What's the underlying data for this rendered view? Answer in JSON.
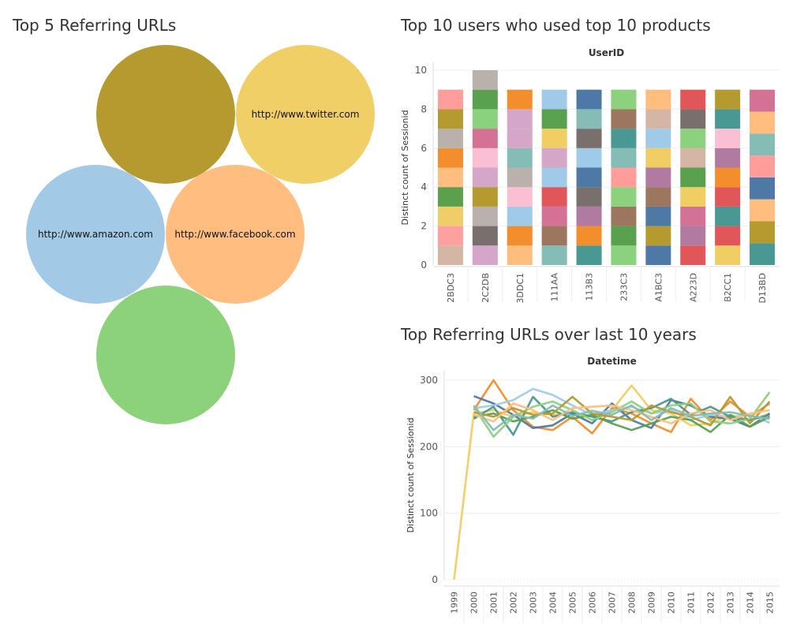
{
  "titles": {
    "bubbles": "Top 5 Referring URLs",
    "bar": "Top 10 users who used top 10 products",
    "line": "Top Referring URLs over last 10 years"
  },
  "chart_data": [
    {
      "type": "bubble",
      "title": "Top 5 Referring URLs",
      "bubbles": [
        {
          "label": "",
          "color": "#b59a30"
        },
        {
          "label": "http://www.twitter.com",
          "color": "#f0cf66"
        },
        {
          "label": "http://www.amazon.com",
          "color": "#a2cae6"
        },
        {
          "label": "http://www.facebook.com",
          "color": "#ffbd7f"
        },
        {
          "label": "",
          "color": "#8cd27a"
        }
      ]
    },
    {
      "type": "bar",
      "stacked": true,
      "title": "Top 10 users who used top 10 products",
      "column_header": "UserID",
      "ylabel": "Distinct count of Sessionid",
      "ylim": [
        0,
        10
      ],
      "yticks": [
        0,
        2,
        4,
        6,
        8,
        10
      ],
      "categories": [
        "2BDC3",
        "2C2DB",
        "3DDC1",
        "111AA",
        "113B3",
        "233C3",
        "A1BC3",
        "A223D",
        "B2CC1",
        "D13BD"
      ],
      "values": [
        9,
        10,
        9,
        9,
        9,
        9,
        9,
        9,
        9,
        9
      ],
      "segment_colors": [
        [
          "#d5b5a4",
          "#ffa0a0",
          "#efce68",
          "#5ba04c",
          "#ffbd7f",
          "#f28e2b",
          "#bab0ac",
          "#b59a30",
          "#ff9d9a"
        ],
        [
          "#d5a6c9",
          "#79706e",
          "#bab0ac",
          "#b59a30",
          "#d4a6c8",
          "#fabfd2",
          "#d37295",
          "#8cd17d",
          "#59a14f",
          "#bab0ac"
        ],
        [
          "#ffbe7d",
          "#f28e2b",
          "#a0cbe8",
          "#fabfd2",
          "#bab0ac",
          "#86bcb6",
          "#d4a6c8",
          "#d4a6c8",
          "#f28e2b"
        ],
        [
          "#86bcb6",
          "#9d7660",
          "#d37295",
          "#e15759",
          "#a0cbe8",
          "#d4a6c8",
          "#f1ce63",
          "#59a14f",
          "#a0cbe8"
        ],
        [
          "#499894",
          "#f28e2b",
          "#b07aa1",
          "#79706e",
          "#4e79a7",
          "#a0cbe8",
          "#79706e",
          "#86bcb6",
          "#4e79a7"
        ],
        [
          "#8cd17d",
          "#59a14f",
          "#9d7660",
          "#8cd17d",
          "#ff9d9a",
          "#86bcb6",
          "#499894",
          "#9d7660",
          "#8cd17d"
        ],
        [
          "#4e79a7",
          "#b59a30",
          "#4e79a7",
          "#9d7660",
          "#b07aa1",
          "#f1ce63",
          "#a0cbe8",
          "#d5b5a4",
          "#ffbe7d"
        ],
        [
          "#e15759",
          "#b07aa1",
          "#d37295",
          "#f1ce63",
          "#59a14f",
          "#d5b5a4",
          "#8cd17d",
          "#79706e",
          "#e15759"
        ],
        [
          "#f1ce63",
          "#e15759",
          "#499894",
          "#e15759",
          "#f28e2b",
          "#b07aa1",
          "#fabfd2",
          "#499894",
          "#b59a30"
        ],
        [
          "#499894",
          "#b59a30",
          "#ffbe7d",
          "#4e79a7",
          "#ff9d9a",
          "#86bcb6",
          "#ffbe7d",
          "#d37295"
        ]
      ]
    },
    {
      "type": "line",
      "title": "Top Referring URLs over last 10 years",
      "column_header": "Datetime",
      "ylabel": "Distinct count of Sessionid",
      "ylim": [
        0,
        300
      ],
      "yticks": [
        0,
        100,
        200,
        300
      ],
      "x": [
        "1999",
        "2000",
        "2001",
        "2002",
        "2003",
        "2004",
        "2005",
        "2006",
        "2007",
        "2008",
        "2009",
        "2010",
        "2011",
        "2012",
        "2013",
        "2014",
        "2015"
      ],
      "series": [
        {
          "color": "#f1ce63",
          "values": [
            0,
            250,
            255,
            245,
            252,
            248,
            250,
            246,
            255,
            292,
            255,
            250,
            232,
            235,
            248,
            240,
            250
          ]
        },
        {
          "color": "#f28e2b",
          "values": [
            null,
            255,
            300,
            255,
            230,
            225,
            245,
            220,
            258,
            250,
            235,
            222,
            272,
            240,
            268,
            245,
            265
          ]
        },
        {
          "color": "#4e79a7",
          "values": [
            null,
            276,
            265,
            248,
            228,
            232,
            250,
            235,
            265,
            240,
            228,
            270,
            262,
            245,
            242,
            230,
            250
          ]
        },
        {
          "color": "#a0cbe8",
          "values": [
            null,
            258,
            262,
            270,
            287,
            278,
            262,
            248,
            255,
            260,
            250,
            255,
            240,
            248,
            245,
            248,
            236
          ]
        },
        {
          "color": "#499894",
          "values": [
            null,
            242,
            260,
            218,
            275,
            245,
            252,
            245,
            238,
            252,
            258,
            272,
            248,
            260,
            245,
            240,
            248
          ]
        },
        {
          "color": "#59a14f",
          "values": [
            null,
            245,
            250,
            238,
            245,
            255,
            242,
            248,
            235,
            225,
            235,
            245,
            240,
            222,
            248,
            230,
            245
          ]
        },
        {
          "color": "#8cd17d",
          "values": [
            null,
            260,
            215,
            245,
            260,
            268,
            255,
            240,
            252,
            268,
            250,
            262,
            265,
            238,
            235,
            242,
            282
          ]
        },
        {
          "color": "#b59a30",
          "values": [
            null,
            252,
            245,
            258,
            248,
            250,
            275,
            250,
            245,
            240,
            262,
            252,
            245,
            232,
            275,
            235,
            268
          ]
        },
        {
          "color": "#ffbe7d",
          "values": [
            null,
            248,
            238,
            265,
            255,
            240,
            258,
            260,
            262,
            255,
            245,
            235,
            250,
            255,
            240,
            250,
            255
          ]
        },
        {
          "color": "#86bcb6",
          "values": [
            null,
            262,
            225,
            248,
            242,
            262,
            246,
            254,
            248,
            262,
            240,
            258,
            246,
            250,
            252,
            246,
            242
          ]
        }
      ],
      "grid": true
    }
  ]
}
